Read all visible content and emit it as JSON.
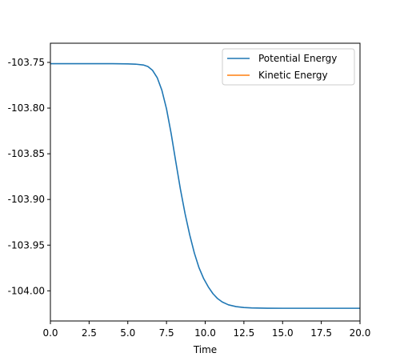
{
  "chart_data": {
    "type": "line",
    "title": "",
    "xlabel": "Time",
    "ylabel": "",
    "xlim": [
      0,
      20
    ],
    "ylim": [
      -104.033,
      -103.729
    ],
    "xticks": [
      0.0,
      2.5,
      5.0,
      7.5,
      10.0,
      12.5,
      15.0,
      17.5,
      20.0
    ],
    "xtick_labels": [
      "0.0",
      "2.5",
      "5.0",
      "7.5",
      "10.0",
      "12.5",
      "15.0",
      "17.5",
      "20.0"
    ],
    "yticks": [
      -103.75,
      -103.8,
      -103.85,
      -103.9,
      -103.95,
      -104.0
    ],
    "ytick_labels": [
      "-103.75",
      "-103.80",
      "-103.85",
      "-103.90",
      "-103.95",
      "-104.00"
    ],
    "grid": false,
    "legend_position": "top-right",
    "series": [
      {
        "name": "Potential Energy",
        "color": "#1f77b4",
        "x": [
          0.0,
          1.0,
          2.0,
          3.0,
          4.0,
          5.0,
          5.5,
          6.0,
          6.3,
          6.6,
          6.9,
          7.2,
          7.5,
          7.8,
          8.1,
          8.4,
          8.7,
          9.0,
          9.3,
          9.6,
          9.9,
          10.2,
          10.5,
          10.8,
          11.1,
          11.5,
          12.0,
          12.5,
          13.0,
          14.0,
          15.0,
          16.0,
          17.5,
          20.0
        ],
        "y": [
          -103.7514,
          -103.7514,
          -103.7514,
          -103.7514,
          -103.7514,
          -103.7516,
          -103.7519,
          -103.7528,
          -103.7545,
          -103.7587,
          -103.7667,
          -103.7804,
          -103.8008,
          -103.8278,
          -103.8587,
          -103.8889,
          -103.9156,
          -103.9388,
          -103.9587,
          -103.9747,
          -103.9866,
          -103.9957,
          -104.0031,
          -104.0085,
          -104.0122,
          -104.0153,
          -104.0173,
          -104.0183,
          -104.0187,
          -104.019,
          -104.0191,
          -104.0191,
          -104.0191,
          -104.0191
        ]
      },
      {
        "name": "Kinetic Energy",
        "color": "#ff7f0e",
        "x": [],
        "y": []
      }
    ]
  }
}
